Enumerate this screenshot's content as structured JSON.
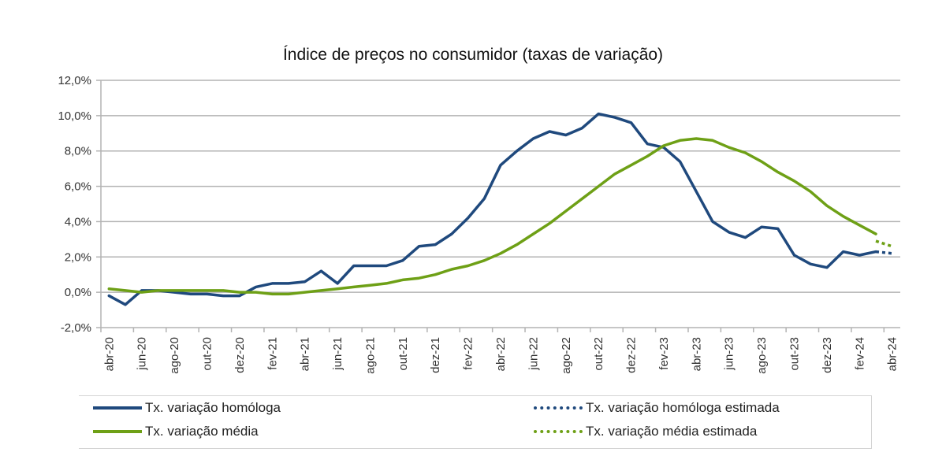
{
  "chart_data": {
    "type": "line",
    "title": "Índice de preços no consumidor  (taxas  de variação)",
    "xlabel": "",
    "ylabel": "",
    "ylim": [
      -2,
      12
    ],
    "y_ticks": [
      -2,
      0,
      2,
      4,
      6,
      8,
      10,
      12
    ],
    "y_tick_labels": [
      "-2,0%",
      "0,0%",
      "2,0%",
      "4,0%",
      "6,0%",
      "8,0%",
      "10,0%",
      "12,0%"
    ],
    "grid": true,
    "legend_position": "bottom",
    "x": [
      "abr-20",
      "mai-20",
      "jun-20",
      "jul-20",
      "ago-20",
      "set-20",
      "out-20",
      "nov-20",
      "dez-20",
      "jan-21",
      "fev-21",
      "mar-21",
      "abr-21",
      "mai-21",
      "jun-21",
      "jul-21",
      "ago-21",
      "set-21",
      "out-21",
      "nov-21",
      "dez-21",
      "jan-22",
      "fev-22",
      "mar-22",
      "abr-22",
      "mai-22",
      "jun-22",
      "jul-22",
      "ago-22",
      "set-22",
      "out-22",
      "nov-22",
      "dez-22",
      "jan-23",
      "fev-23",
      "mar-23",
      "abr-23",
      "mai-23",
      "jun-23",
      "jul-23",
      "ago-23",
      "set-23",
      "out-23",
      "nov-23",
      "dez-23",
      "jan-24",
      "fev-24",
      "mar-24",
      "abr-24"
    ],
    "x_tick_labels": [
      "abr-20",
      "jun-20",
      "ago-20",
      "out-20",
      "dez-20",
      "fev-21",
      "abr-21",
      "jun-21",
      "ago-21",
      "out-21",
      "dez-21",
      "fev-22",
      "abr-22",
      "jun-22",
      "ago-22",
      "out-22",
      "dez-22",
      "fev-23",
      "abr-23",
      "jun-23",
      "ago-23",
      "out-23",
      "dez-23",
      "fev-24",
      "abr-24"
    ],
    "series": [
      {
        "name": "Tx. variação homóloga",
        "color": "#1f497d",
        "style": "solid",
        "values": [
          -0.2,
          -0.7,
          0.1,
          0.1,
          0.0,
          -0.1,
          -0.1,
          -0.2,
          -0.2,
          0.3,
          0.5,
          0.5,
          0.6,
          1.2,
          0.5,
          1.5,
          1.5,
          1.5,
          1.8,
          2.6,
          2.7,
          3.3,
          4.2,
          5.3,
          7.2,
          8.0,
          8.7,
          9.1,
          8.9,
          9.3,
          10.1,
          9.9,
          9.6,
          8.4,
          8.2,
          7.4,
          5.7,
          4.0,
          3.4,
          3.1,
          3.7,
          3.6,
          2.1,
          1.6,
          1.4,
          2.3,
          2.1,
          2.3,
          null
        ]
      },
      {
        "name": "Tx. variação homóloga estimada",
        "color": "#1f497d",
        "style": "dotted",
        "values": [
          null,
          null,
          null,
          null,
          null,
          null,
          null,
          null,
          null,
          null,
          null,
          null,
          null,
          null,
          null,
          null,
          null,
          null,
          null,
          null,
          null,
          null,
          null,
          null,
          null,
          null,
          null,
          null,
          null,
          null,
          null,
          null,
          null,
          null,
          null,
          null,
          null,
          null,
          null,
          null,
          null,
          null,
          null,
          null,
          null,
          null,
          null,
          2.3,
          2.2
        ]
      },
      {
        "name": "Tx. variação média",
        "color": "#6ea016",
        "style": "solid",
        "values": [
          0.2,
          0.1,
          0.0,
          0.1,
          0.1,
          0.1,
          0.1,
          0.1,
          0.0,
          0.0,
          -0.1,
          -0.1,
          0.0,
          0.1,
          0.2,
          0.3,
          0.4,
          0.5,
          0.7,
          0.8,
          1.0,
          1.3,
          1.5,
          1.8,
          2.2,
          2.7,
          3.3,
          3.9,
          4.6,
          5.3,
          6.0,
          6.7,
          7.2,
          7.7,
          8.3,
          8.6,
          8.7,
          8.6,
          8.2,
          7.9,
          7.4,
          6.8,
          6.3,
          5.7,
          4.9,
          4.3,
          3.8,
          3.3,
          null
        ]
      },
      {
        "name": "Tx. variação média  estimada",
        "color": "#6ea016",
        "style": "dotted",
        "values": [
          null,
          null,
          null,
          null,
          null,
          null,
          null,
          null,
          null,
          null,
          null,
          null,
          null,
          null,
          null,
          null,
          null,
          null,
          null,
          null,
          null,
          null,
          null,
          null,
          null,
          null,
          null,
          null,
          null,
          null,
          null,
          null,
          null,
          null,
          null,
          null,
          null,
          null,
          null,
          null,
          null,
          null,
          null,
          null,
          null,
          null,
          null,
          2.9,
          2.6
        ]
      }
    ]
  },
  "legend": {
    "items": [
      {
        "label": "Tx. variação homóloga",
        "color": "#1f497d",
        "style": "solid"
      },
      {
        "label": "Tx. variação homóloga estimada",
        "color": "#1f497d",
        "style": "dotted"
      },
      {
        "label": "Tx. variação média",
        "color": "#6ea016",
        "style": "solid"
      },
      {
        "label": "Tx. variação média  estimada",
        "color": "#6ea016",
        "style": "dotted"
      }
    ]
  }
}
